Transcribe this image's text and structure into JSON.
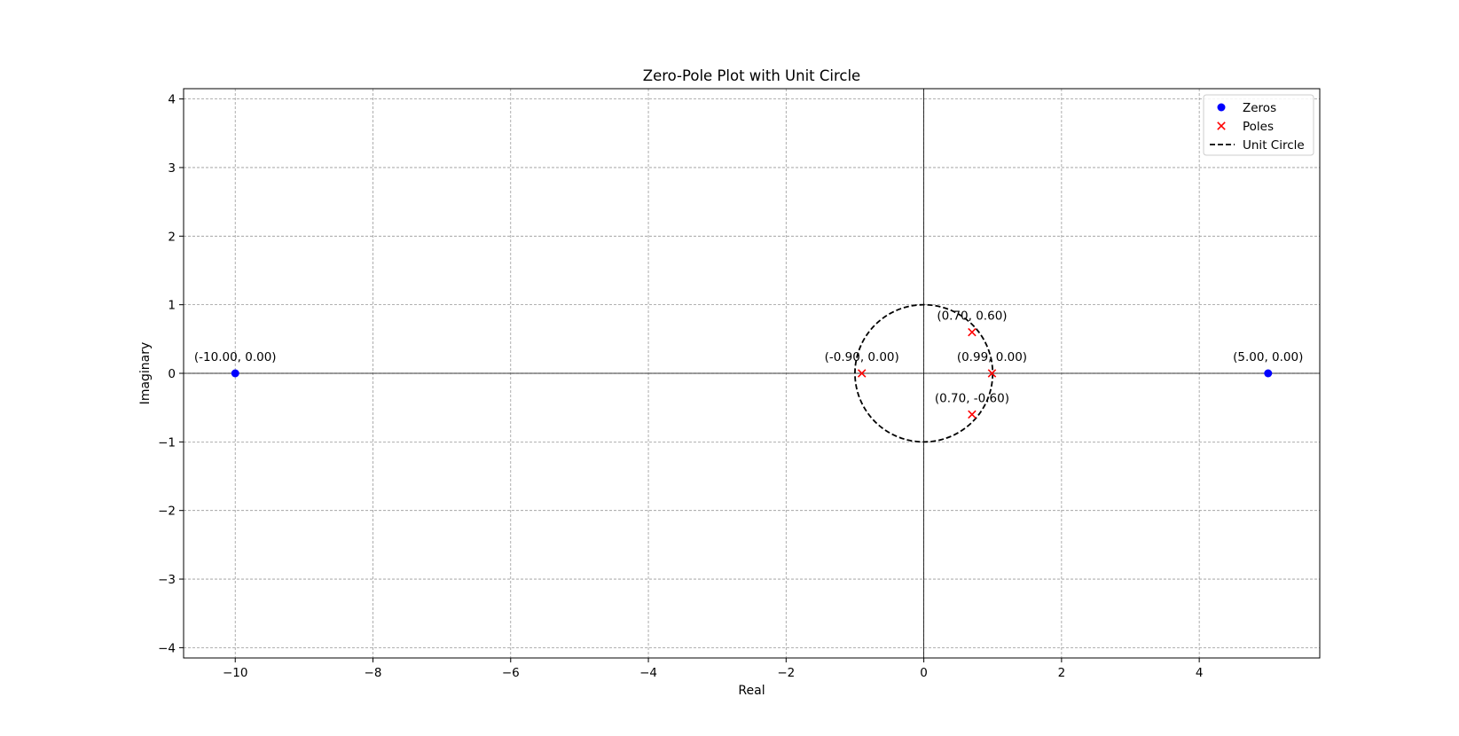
{
  "chart_data": {
    "type": "scatter",
    "title": "Zero-Pole Plot with Unit Circle",
    "xlabel": "Real",
    "ylabel": "Imaginary",
    "xlim": [
      -10.75,
      5.75
    ],
    "ylim": [
      -4.15,
      4.15
    ],
    "xticks": [
      -10,
      -8,
      -6,
      -4,
      -2,
      0,
      2,
      4
    ],
    "yticks": [
      -4,
      -3,
      -2,
      -1,
      0,
      1,
      2,
      3,
      4
    ],
    "grid": true,
    "legend_position": "top-right",
    "series": [
      {
        "name": "Zeros",
        "marker": "circle",
        "color": "#0000ff",
        "points": [
          {
            "x": -10,
            "y": 0,
            "label": "(-10.00, 0.00)"
          },
          {
            "x": 5,
            "y": 0,
            "label": "(5.00, 0.00)"
          }
        ]
      },
      {
        "name": "Poles",
        "marker": "x",
        "color": "#ff0000",
        "points": [
          {
            "x": 0.7,
            "y": 0.6,
            "label": "(0.70, 0.60)"
          },
          {
            "x": -0.9,
            "y": 0,
            "label": "(-0.90, 0.00)"
          },
          {
            "x": 0.99,
            "y": 0,
            "label": "(0.99, 0.00)"
          },
          {
            "x": 0.7,
            "y": -0.6,
            "label": "(0.70, -0.60)"
          }
        ]
      },
      {
        "name": "Unit Circle",
        "style": "dashed",
        "color": "#000000",
        "radius": 1
      }
    ]
  }
}
